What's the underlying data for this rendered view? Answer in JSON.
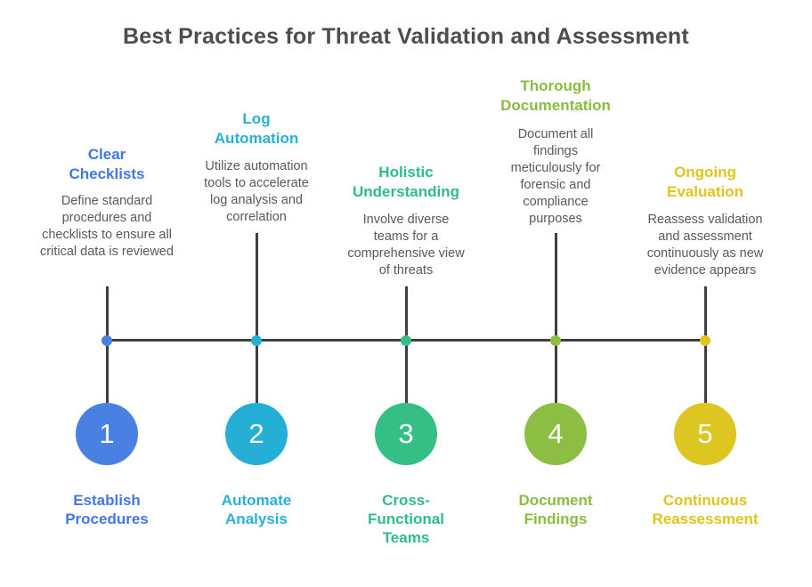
{
  "title": "Best Practices for Threat Validation and Assessment",
  "palette": {
    "title_text": "#4d4d4d",
    "description_text": "#595959",
    "timeline_line": "#3f3f3f"
  },
  "steps": [
    {
      "number": "1",
      "heading": "Clear Checklists",
      "description": "Define standard procedures and checklists to ensure all critical data is reviewed",
      "label": "Establish Procedures",
      "color": "#4178e4",
      "circle_color": "#4a80e1"
    },
    {
      "number": "2",
      "heading": "Log Automation",
      "description": "Utilize automation tools to accelerate log analysis and correlation",
      "label": "Automate Analysis",
      "color": "#27b0da",
      "circle_color": "#25afd6"
    },
    {
      "number": "3",
      "heading": "Holistic Understanding",
      "description": "Involve diverse teams for a comprehensive view of threats",
      "label": "Cross-Functional Teams",
      "color": "#2dbd85",
      "circle_color": "#35bf85"
    },
    {
      "number": "4",
      "heading": "Thorough Documentation",
      "description": "Document all findings meticulously for forensic and compliance purposes",
      "label": "Document Findings",
      "color": "#8abc41",
      "circle_color": "#8cbe44"
    },
    {
      "number": "5",
      "heading": "Ongoing Evaluation",
      "description": "Reassess validation and assessment continuously as new evidence appears",
      "label": "Continuous Reassessment",
      "color": "#e0c41c",
      "circle_color": "#ddc522"
    }
  ]
}
